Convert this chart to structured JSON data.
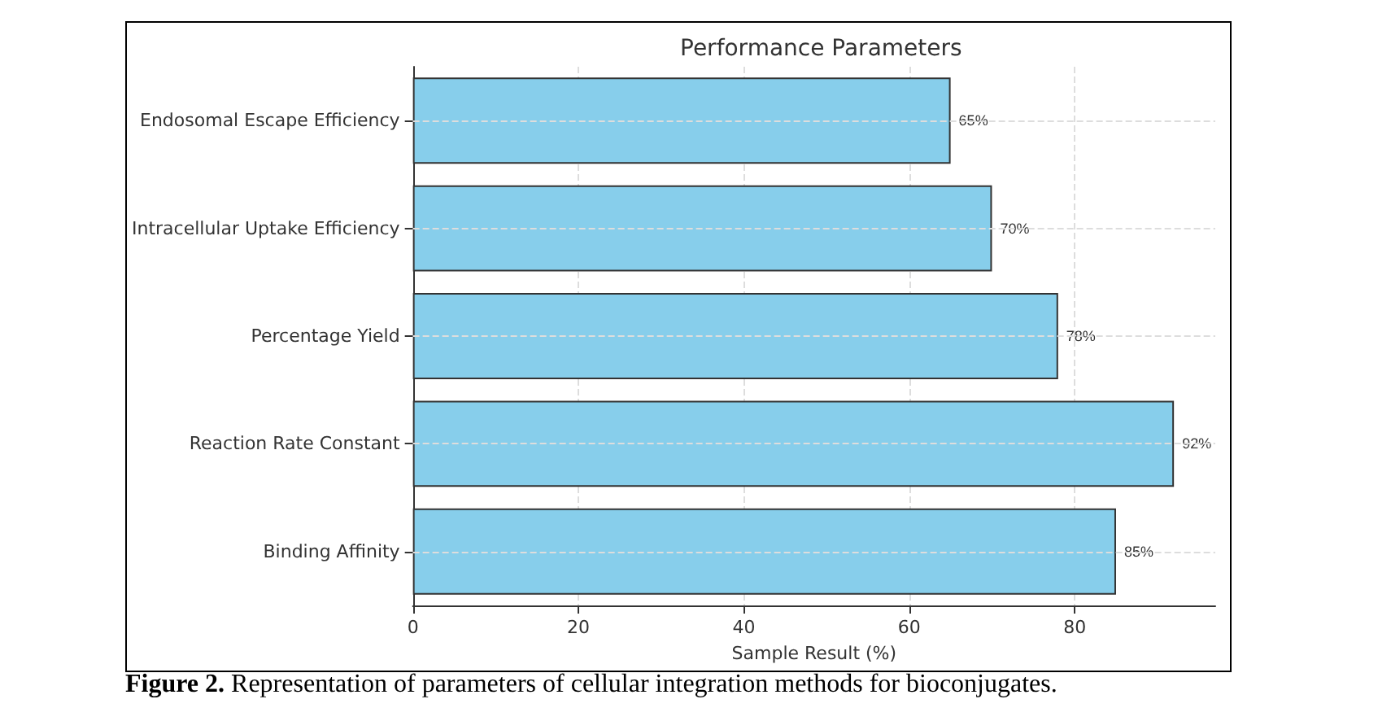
{
  "chart_data": {
    "type": "bar",
    "orientation": "horizontal",
    "title": "Performance Parameters",
    "xlabel": "Sample Result (%)",
    "categories": [
      "Endosomal Escape Efficiency",
      "Intracellular Uptake Efficiency",
      "Percentage Yield",
      "Reaction Rate Constant",
      "Binding Affinity"
    ],
    "values": [
      65,
      70,
      78,
      92,
      85
    ],
    "value_labels": [
      "65%",
      "70%",
      "78%",
      "92%",
      "85%"
    ],
    "color": "#87ceeb",
    "xlim": [
      0,
      97
    ],
    "xticks": [
      0,
      20,
      40,
      60,
      80
    ],
    "grid": true,
    "annotations": [
      "Figure 2. Representation of parameters of cellular integration methods for bioconjugates."
    ]
  }
}
